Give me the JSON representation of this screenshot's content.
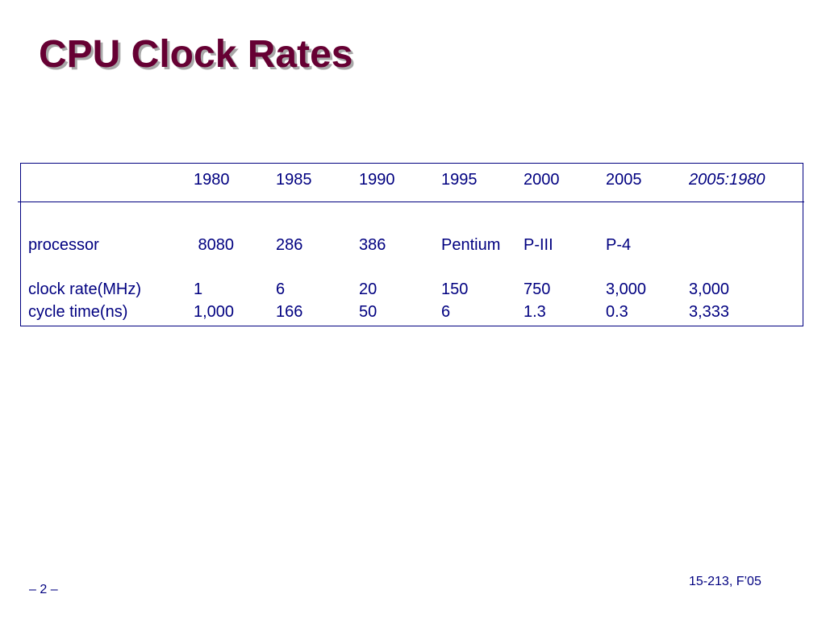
{
  "slide": {
    "title": "CPU Clock Rates",
    "footer_page": "– 2 –",
    "footer_course": "15-213, F’05"
  },
  "table": {
    "header": [
      "",
      "1980",
      "1985",
      "1990",
      "1995",
      "2000",
      "2005",
      "2005:1980"
    ],
    "rows": [
      [
        "processor",
        " 8080",
        "286",
        "386",
        "Pentium",
        "P-III",
        "P-4",
        ""
      ],
      [
        "clock rate(MHz)",
        "1",
        "6",
        "20",
        "150",
        "750",
        "3,000",
        "3,000"
      ],
      [
        "cycle time(ns)",
        "1,000",
        "166",
        "50",
        "6",
        "1.3",
        "0.3",
        "3,333"
      ]
    ]
  },
  "colors": {
    "title": "#660033",
    "text": "#000080",
    "rule": "#000080"
  }
}
